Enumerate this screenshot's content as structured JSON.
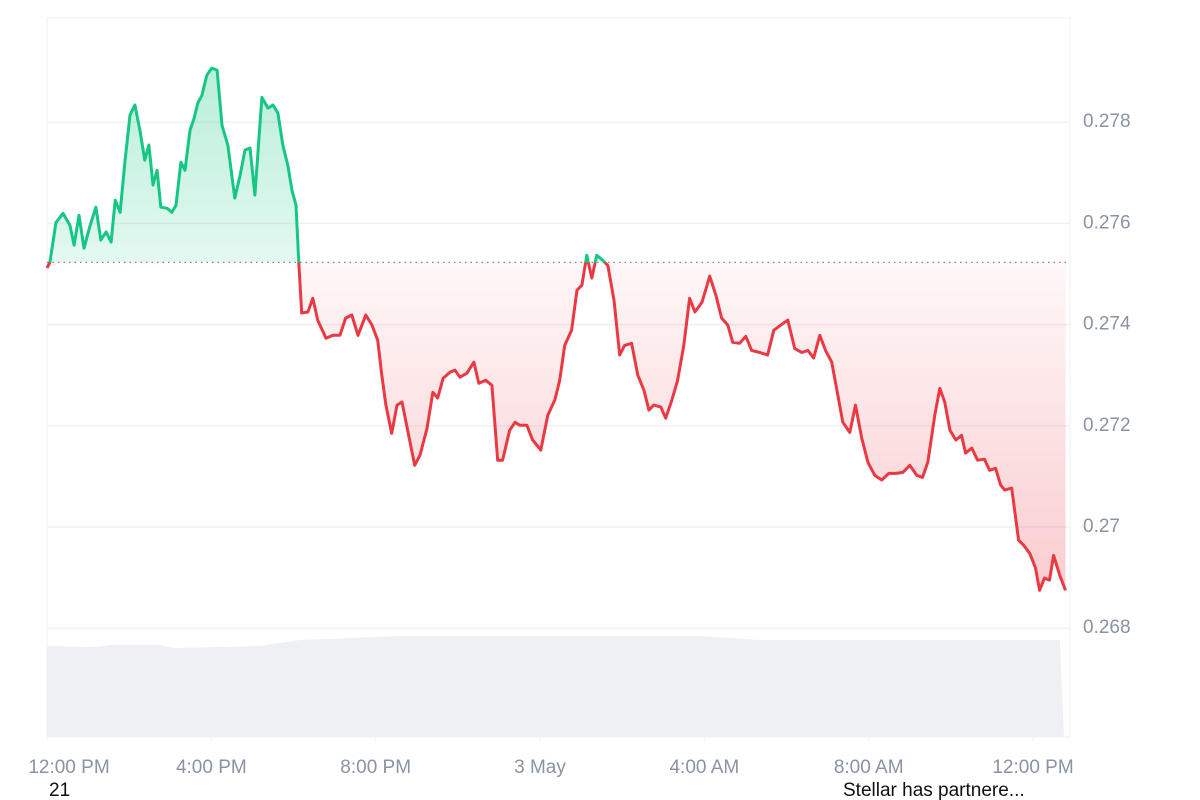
{
  "chart_data": {
    "type": "line",
    "x": [
      0,
      0.07,
      0.22,
      0.39,
      0.56,
      0.66,
      0.78,
      0.9,
      1.05,
      1.19,
      1.31,
      1.44,
      1.56,
      1.66,
      1.78,
      1.9,
      2.02,
      2.14,
      2.26,
      2.38,
      2.48,
      2.58,
      2.68,
      2.77,
      2.92,
      3.04,
      3.14,
      3.26,
      3.36,
      3.48,
      3.58,
      3.67,
      3.77,
      3.89,
      4.01,
      4.14,
      4.26,
      4.4,
      4.57,
      4.7,
      4.82,
      4.94,
      5.06,
      5.23,
      5.38,
      5.5,
      5.62,
      5.74,
      5.86,
      5.96,
      6.06,
      6.13,
      6.2,
      6.35,
      6.47,
      6.59,
      6.79,
      6.96,
      7.13,
      7.27,
      7.42,
      7.57,
      7.76,
      7.91,
      8.05,
      8.15,
      8.25,
      8.39,
      8.52,
      8.64,
      8.78,
      8.95,
      9.08,
      9.25,
      9.39,
      9.51,
      9.64,
      9.81,
      9.93,
      10.05,
      10.22,
      10.39,
      10.51,
      10.68,
      10.83,
      10.97,
      11.09,
      11.26,
      11.39,
      11.51,
      11.68,
      11.82,
      12.02,
      12.19,
      12.36,
      12.48,
      12.6,
      12.77,
      12.9,
      13.02,
      13.14,
      13.26,
      13.38,
      13.53,
      13.65,
      13.8,
      13.94,
      14.06,
      14.23,
      14.38,
      14.53,
      14.65,
      14.77,
      14.94,
      15.06,
      15.21,
      15.35,
      15.5,
      15.64,
      15.77,
      15.94,
      16.03,
      16.13,
      16.28,
      16.42,
      16.57,
      16.69,
      16.86,
      17.01,
      17.15,
      17.35,
      17.54,
      17.69,
      17.86,
      18.03,
      18.2,
      18.37,
      18.52,
      18.66,
      18.81,
      18.95,
      19.1,
      19.25,
      19.37,
      19.54,
      19.68,
      19.83,
      19.98,
      20.15,
      20.32,
      20.49,
      20.66,
      20.83,
      21.0,
      21.17,
      21.31,
      21.44,
      21.61,
      21.73,
      21.85,
      21.98,
      22.12,
      22.26,
      22.36,
      22.51,
      22.65,
      22.82,
      22.94,
      23.09,
      23.21,
      23.31,
      23.48,
      23.65,
      23.77,
      23.92,
      24.06,
      24.16,
      24.28,
      24.4,
      24.5,
      24.65,
      24.79
    ],
    "values": [
      0.27512,
      0.27523,
      0.27602,
      0.2762,
      0.27596,
      0.27557,
      0.27616,
      0.27551,
      0.27596,
      0.27632,
      0.27567,
      0.27583,
      0.27563,
      0.27646,
      0.27622,
      0.27725,
      0.27814,
      0.27834,
      0.27784,
      0.27725,
      0.27755,
      0.27676,
      0.27705,
      0.27632,
      0.2763,
      0.27622,
      0.27636,
      0.27721,
      0.27705,
      0.27784,
      0.27808,
      0.27838,
      0.27853,
      0.27893,
      0.27907,
      0.27903,
      0.27794,
      0.27755,
      0.2765,
      0.27695,
      0.27745,
      0.27749,
      0.27656,
      0.27849,
      0.27828,
      0.27834,
      0.27818,
      0.27755,
      0.27715,
      0.27666,
      0.27636,
      0.27523,
      0.27423,
      0.27425,
      0.27452,
      0.27409,
      0.27373,
      0.27379,
      0.27379,
      0.27413,
      0.27419,
      0.27379,
      0.27419,
      0.27399,
      0.27369,
      0.273,
      0.27241,
      0.27185,
      0.27241,
      0.27247,
      0.27191,
      0.27122,
      0.27142,
      0.27195,
      0.27266,
      0.27255,
      0.27294,
      0.27306,
      0.2731,
      0.27296,
      0.27304,
      0.27326,
      0.27284,
      0.2729,
      0.2728,
      0.27132,
      0.27132,
      0.27191,
      0.27207,
      0.27201,
      0.27201,
      0.27172,
      0.27152,
      0.27221,
      0.27251,
      0.2729,
      0.27359,
      0.27389,
      0.27468,
      0.27478,
      0.27537,
      0.27492,
      0.27537,
      0.27527,
      0.27517,
      0.27448,
      0.2734,
      0.27359,
      0.27363,
      0.273,
      0.2727,
      0.27231,
      0.27241,
      0.27237,
      0.27215,
      0.27251,
      0.2729,
      0.27359,
      0.27452,
      0.27425,
      0.27444,
      0.27468,
      0.27496,
      0.27458,
      0.27413,
      0.27399,
      0.27365,
      0.27363,
      0.27377,
      0.27349,
      0.27345,
      0.2734,
      0.27389,
      0.27399,
      0.27409,
      0.27353,
      0.27345,
      0.27349,
      0.27334,
      0.27379,
      0.27349,
      0.27326,
      0.2726,
      0.27207,
      0.27187,
      0.27241,
      0.27176,
      0.27128,
      0.27102,
      0.27093,
      0.27106,
      0.27106,
      0.27108,
      0.27122,
      0.27102,
      0.27098,
      0.27128,
      0.27221,
      0.27274,
      0.27247,
      0.27191,
      0.27172,
      0.27181,
      0.27146,
      0.27156,
      0.27132,
      0.27134,
      0.27112,
      0.27116,
      0.27083,
      0.27073,
      0.27077,
      0.26974,
      0.26964,
      0.26948,
      0.26919,
      0.26875,
      0.26899,
      0.26895,
      0.26944,
      0.26905,
      0.26875
    ],
    "baseline": 0.27523,
    "up_color": "#16c784",
    "down_color": "#ea3943",
    "xlim": [
      0,
      24.9
    ],
    "xticks": [
      {
        "value": 0,
        "label": "12:00 PM"
      },
      {
        "value": 4,
        "label": "4:00 PM"
      },
      {
        "value": 8,
        "label": "8:00 PM"
      },
      {
        "value": 12,
        "label": "3 May"
      },
      {
        "value": 16,
        "label": "4:00 AM"
      },
      {
        "value": 20,
        "label": "8:00 AM"
      },
      {
        "value": 24,
        "label": "12:00 PM"
      }
    ],
    "ylim": [
      0.26585,
      0.28006
    ],
    "yticks": [
      0.268,
      0.27,
      0.272,
      0.274,
      0.276,
      0.278
    ],
    "grid": true,
    "annotations": [
      "21",
      "Stellar has partnere..."
    ]
  }
}
